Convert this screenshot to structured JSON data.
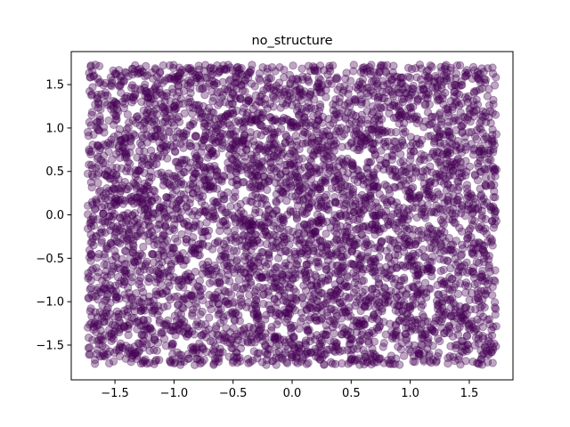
{
  "chart_data": {
    "type": "scatter",
    "title": "no_structure",
    "xlabel": "",
    "ylabel": "",
    "xlim": [
      -1.87,
      1.87
    ],
    "ylim": [
      -1.9,
      1.88
    ],
    "xticks": [
      -1.5,
      -1.0,
      -0.5,
      0.0,
      0.5,
      1.0,
      1.5
    ],
    "xtick_labels": [
      "−1.5",
      "−1.0",
      "−0.5",
      "0.0",
      "0.5",
      "1.0",
      "1.5"
    ],
    "yticks": [
      -1.5,
      -1.0,
      -0.5,
      0.0,
      0.5,
      1.0,
      1.5
    ],
    "ytick_labels": [
      "−1.5",
      "−1.0",
      "−0.5",
      "0.0",
      "0.5",
      "1.0",
      "1.5"
    ],
    "grid": false,
    "legend": "none",
    "point_color": "#440154",
    "point_alpha": 0.35,
    "distribution": "uniform",
    "x_range": [
      -1.73,
      1.73
    ],
    "y_range": [
      -1.73,
      1.73
    ],
    "n_points": 5000
  }
}
